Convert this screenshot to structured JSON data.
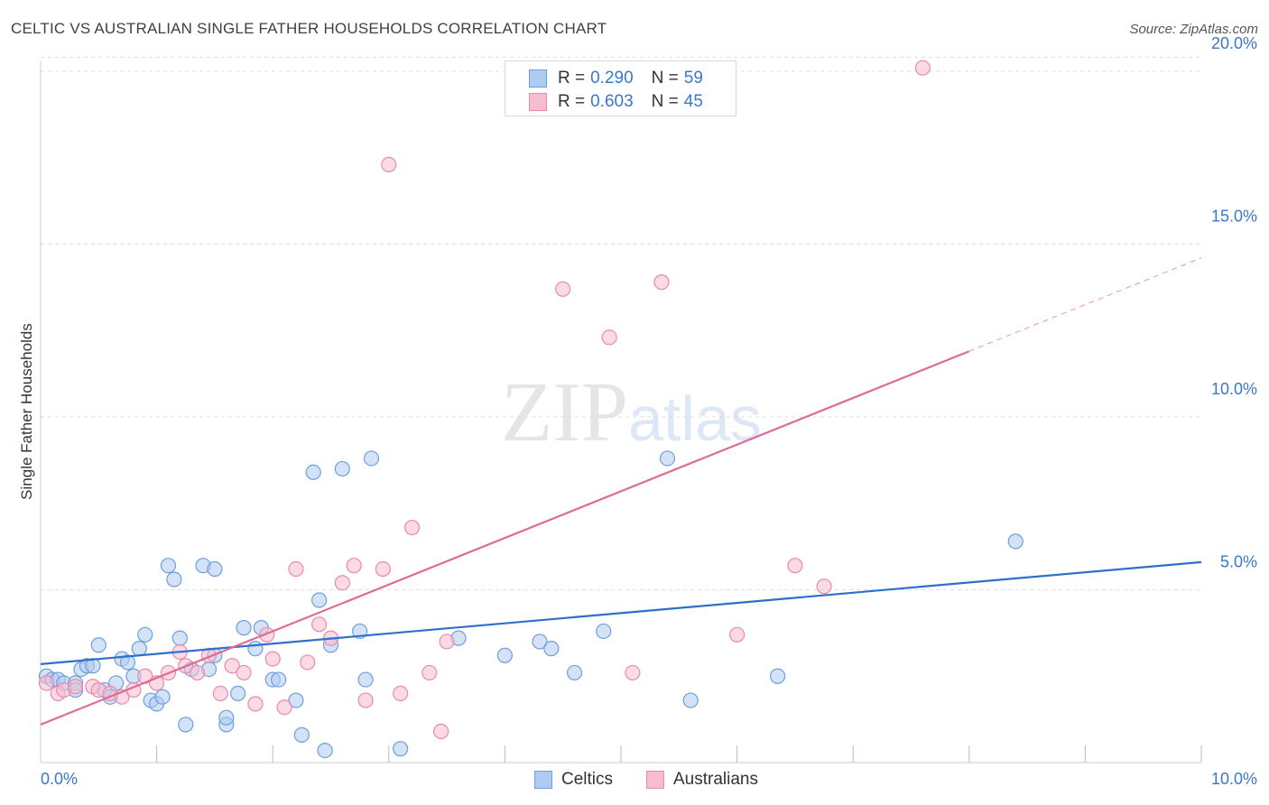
{
  "header": {
    "title": "CELTIC VS AUSTRALIAN SINGLE FATHER HOUSEHOLDS CORRELATION CHART",
    "source": "Source: ZipAtlas.com"
  },
  "watermark": {
    "zip": "ZIP",
    "atlas": "atlas"
  },
  "legend": {
    "celtics": {
      "r_label": "R =",
      "r_value": "0.290",
      "n_label": "N =",
      "n_value": "59"
    },
    "australians": {
      "r_label": "R =",
      "r_value": "0.603",
      "n_label": "N =",
      "n_value": "45"
    }
  },
  "colors": {
    "celtics_fill": "#aecbf1",
    "celtics_stroke": "#6d9fdc",
    "celtics_line": "#2f6fcc",
    "australians_fill": "#f7bcd0",
    "australians_stroke": "#e98aaa",
    "australians_line": "#e06a94",
    "grid": "#dddddd",
    "tick_text": "#3a78c9"
  },
  "chart_data": {
    "type": "scatter",
    "title": "CELTIC VS AUSTRALIAN SINGLE FATHER HOUSEHOLDS CORRELATION CHART",
    "xlabel": "",
    "ylabel": "Single Father Households",
    "xlim": [
      0,
      10
    ],
    "ylim": [
      0,
      20.4
    ],
    "x_tick_labels": [
      {
        "value": 0,
        "label": "0.0%"
      },
      {
        "value": 10,
        "label": "10.0%"
      }
    ],
    "y_tick_labels": [
      {
        "value": 5,
        "label": "5.0%"
      },
      {
        "value": 10,
        "label": "10.0%"
      },
      {
        "value": 15,
        "label": "15.0%"
      },
      {
        "value": 20,
        "label": "20.0%"
      }
    ],
    "x_minor_ticks": [
      1,
      2,
      3,
      4,
      5,
      6,
      7,
      8,
      9,
      10
    ],
    "grid": true,
    "legend_position": "top-center",
    "series": [
      {
        "name": "Celtics",
        "r": 0.29,
        "n": 59,
        "trend": {
          "x": [
            0,
            10
          ],
          "y": [
            2.85,
            5.8
          ]
        },
        "points": [
          [
            0.05,
            2.5
          ],
          [
            0.1,
            2.4
          ],
          [
            0.15,
            2.4
          ],
          [
            0.2,
            2.3
          ],
          [
            0.3,
            2.3
          ],
          [
            0.3,
            2.1
          ],
          [
            0.35,
            2.7
          ],
          [
            0.4,
            2.8
          ],
          [
            0.45,
            2.8
          ],
          [
            0.5,
            3.4
          ],
          [
            0.55,
            2.1
          ],
          [
            0.6,
            1.9
          ],
          [
            0.65,
            2.3
          ],
          [
            0.7,
            3.0
          ],
          [
            0.75,
            2.9
          ],
          [
            0.8,
            2.5
          ],
          [
            0.85,
            3.3
          ],
          [
            0.9,
            3.7
          ],
          [
            0.95,
            1.8
          ],
          [
            1.0,
            1.7
          ],
          [
            1.05,
            1.9
          ],
          [
            1.1,
            5.7
          ],
          [
            1.15,
            5.3
          ],
          [
            1.2,
            3.6
          ],
          [
            1.25,
            1.1
          ],
          [
            1.3,
            2.7
          ],
          [
            1.4,
            5.7
          ],
          [
            1.45,
            2.7
          ],
          [
            1.5,
            3.1
          ],
          [
            1.5,
            5.6
          ],
          [
            1.6,
            1.1
          ],
          [
            1.6,
            1.3
          ],
          [
            1.7,
            2.0
          ],
          [
            1.75,
            3.9
          ],
          [
            1.85,
            3.3
          ],
          [
            1.9,
            3.9
          ],
          [
            2.0,
            2.4
          ],
          [
            2.05,
            2.4
          ],
          [
            2.2,
            1.8
          ],
          [
            2.25,
            0.8
          ],
          [
            2.35,
            8.4
          ],
          [
            2.4,
            4.7
          ],
          [
            2.45,
            0.35
          ],
          [
            2.5,
            3.4
          ],
          [
            2.6,
            8.5
          ],
          [
            2.75,
            3.8
          ],
          [
            2.8,
            2.4
          ],
          [
            2.85,
            8.8
          ],
          [
            3.1,
            0.4
          ],
          [
            3.6,
            3.6
          ],
          [
            4.0,
            3.1
          ],
          [
            4.3,
            3.5
          ],
          [
            4.4,
            3.3
          ],
          [
            4.6,
            2.6
          ],
          [
            4.85,
            3.8
          ],
          [
            5.4,
            8.8
          ],
          [
            5.6,
            1.8
          ],
          [
            6.35,
            2.5
          ],
          [
            8.4,
            6.4
          ]
        ]
      },
      {
        "name": "Australians",
        "r": 0.603,
        "n": 45,
        "trend": {
          "x": [
            0,
            8.0
          ],
          "y": [
            1.1,
            11.9
          ]
        },
        "trend_extension": {
          "x": [
            8.0,
            10
          ],
          "y": [
            11.9,
            14.6
          ]
        },
        "points": [
          [
            0.05,
            2.3
          ],
          [
            0.15,
            2.0
          ],
          [
            0.2,
            2.1
          ],
          [
            0.3,
            2.2
          ],
          [
            0.45,
            2.2
          ],
          [
            0.5,
            2.1
          ],
          [
            0.6,
            2.0
          ],
          [
            0.7,
            1.9
          ],
          [
            0.8,
            2.1
          ],
          [
            0.9,
            2.5
          ],
          [
            1.0,
            2.3
          ],
          [
            1.1,
            2.6
          ],
          [
            1.2,
            3.2
          ],
          [
            1.25,
            2.8
          ],
          [
            1.35,
            2.6
          ],
          [
            1.45,
            3.1
          ],
          [
            1.55,
            2.0
          ],
          [
            1.65,
            2.8
          ],
          [
            1.75,
            2.6
          ],
          [
            1.85,
            1.7
          ],
          [
            1.95,
            3.7
          ],
          [
            2.0,
            3.0
          ],
          [
            2.1,
            1.6
          ],
          [
            2.2,
            5.6
          ],
          [
            2.3,
            2.9
          ],
          [
            2.4,
            4.0
          ],
          [
            2.5,
            3.6
          ],
          [
            2.6,
            5.2
          ],
          [
            2.7,
            5.7
          ],
          [
            2.8,
            1.8
          ],
          [
            2.95,
            5.6
          ],
          [
            3.0,
            17.3
          ],
          [
            3.1,
            2.0
          ],
          [
            3.2,
            6.8
          ],
          [
            3.35,
            2.6
          ],
          [
            3.45,
            0.9
          ],
          [
            3.5,
            3.5
          ],
          [
            4.5,
            13.7
          ],
          [
            4.9,
            12.3
          ],
          [
            5.1,
            2.6
          ],
          [
            5.35,
            13.9
          ],
          [
            6.0,
            3.7
          ],
          [
            6.5,
            5.7
          ],
          [
            6.75,
            5.1
          ],
          [
            7.6,
            20.1
          ]
        ]
      }
    ]
  }
}
